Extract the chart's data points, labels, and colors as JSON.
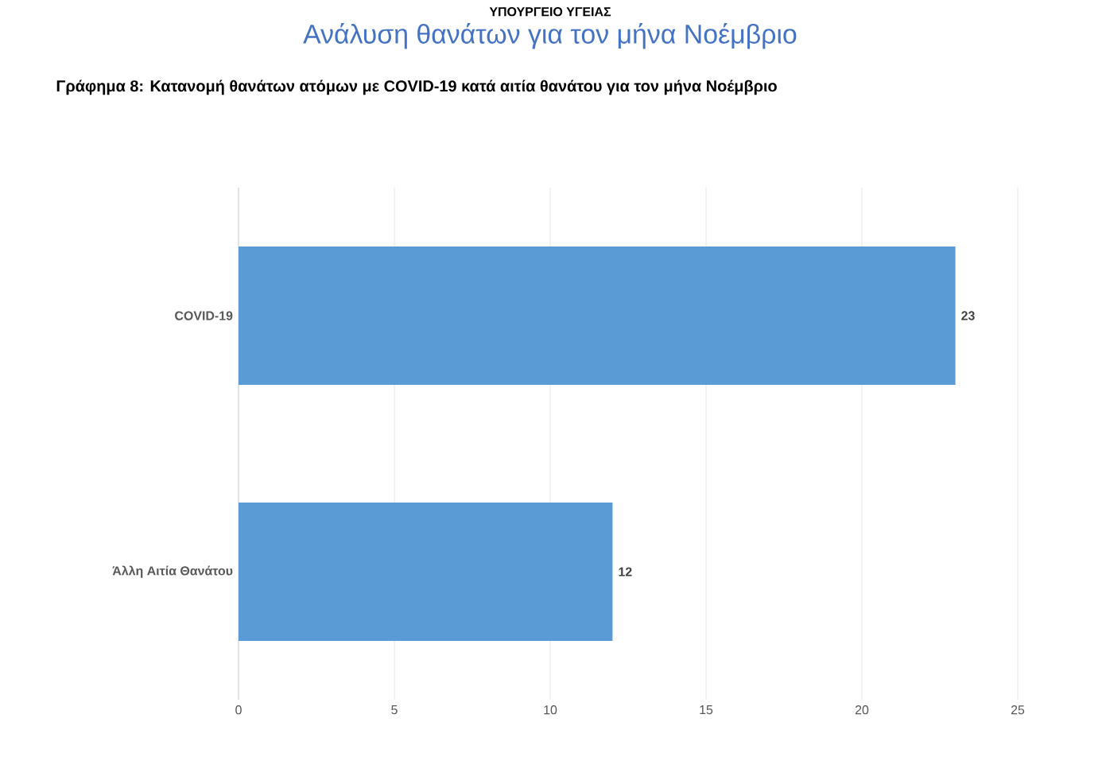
{
  "chart_data": {
    "type": "bar",
    "orientation": "horizontal",
    "title": "Ανάλυση θανάτων για τον μήνα Νοέμβριο",
    "subtitle": "Γράφημα 8: Κατανομή θανάτων ατόμων με COVID-19 κατά αιτία θανάτου για τον μήνα Νοέμβριο",
    "annotations": [
      "ΥΠΟΥΡΓΕΙΟ ΥΓΕΙΑΣ"
    ],
    "categories": [
      "COVID-19",
      "Άλλη Αιτία Θανάτου"
    ],
    "values": [
      23,
      12
    ],
    "color": "#5b9bd5",
    "xlim": [
      0,
      25
    ],
    "xticks": [
      0,
      5,
      10,
      15,
      20,
      25
    ],
    "grid": "x",
    "data_labels": true
  }
}
